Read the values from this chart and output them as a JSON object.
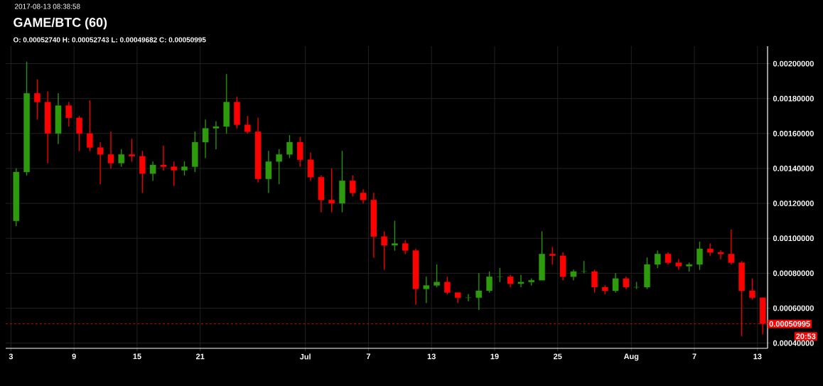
{
  "chart_data": {
    "type": "candlestick",
    "title": "GAME/BTC (60)",
    "subtitle": "O: 0.00052740 H: 0.00052743 L: 0.00049682 C: 0.00050995",
    "annotations": [
      "2017-08-13 08:38:58",
      "20:53"
    ],
    "x": [
      "2017-06-03T12:00",
      "2017-06-04T12:00",
      "2017-06-05T12:00",
      "2017-06-06T12:00",
      "2017-06-07T12:00",
      "2017-06-08T12:00",
      "2017-06-09T12:00",
      "2017-06-10T12:00",
      "2017-06-11T12:00",
      "2017-06-12T12:00",
      "2017-06-13T12:00",
      "2017-06-14T12:00",
      "2017-06-15T12:00",
      "2017-06-16T12:00",
      "2017-06-17T12:00",
      "2017-06-18T12:00",
      "2017-06-19T12:00",
      "2017-06-20T12:00",
      "2017-06-21T12:00",
      "2017-06-22T12:00",
      "2017-06-23T12:00",
      "2017-06-24T12:00",
      "2017-06-25T12:00",
      "2017-06-26T12:00",
      "2017-06-27T12:00",
      "2017-06-28T12:00",
      "2017-06-29T12:00",
      "2017-06-30T12:00",
      "2017-07-01T12:00",
      "2017-07-02T12:00",
      "2017-07-03T12:00",
      "2017-07-04T12:00",
      "2017-07-05T12:00",
      "2017-07-06T12:00",
      "2017-07-07T12:00",
      "2017-07-08T12:00",
      "2017-07-09T12:00",
      "2017-07-10T12:00",
      "2017-07-11T12:00",
      "2017-07-12T12:00",
      "2017-07-13T12:00",
      "2017-07-14T12:00",
      "2017-07-15T12:00",
      "2017-07-16T12:00",
      "2017-07-17T12:00",
      "2017-07-18T12:00",
      "2017-07-19T12:00",
      "2017-07-20T12:00",
      "2017-07-21T12:00",
      "2017-07-22T12:00",
      "2017-07-23T12:00",
      "2017-07-24T12:00",
      "2017-07-25T12:00",
      "2017-07-26T12:00",
      "2017-07-27T12:00",
      "2017-07-28T12:00",
      "2017-07-29T12:00",
      "2017-07-30T12:00",
      "2017-07-31T12:00",
      "2017-08-01T12:00",
      "2017-08-02T12:00",
      "2017-08-03T12:00",
      "2017-08-04T12:00",
      "2017-08-05T12:00",
      "2017-08-06T12:00",
      "2017-08-07T12:00",
      "2017-08-08T12:00",
      "2017-08-09T12:00",
      "2017-08-10T12:00",
      "2017-08-11T12:00",
      "2017-08-12T12:00",
      "2017-08-13T12:00"
    ],
    "ohlc": [
      [
        0.0011,
        0.0014,
        0.00107,
        0.00138
      ],
      [
        0.00138,
        0.00201,
        0.00136,
        0.00183
      ],
      [
        0.00183,
        0.00191,
        0.00168,
        0.00178
      ],
      [
        0.00178,
        0.00184,
        0.00143,
        0.0016
      ],
      [
        0.0016,
        0.00183,
        0.00154,
        0.00176
      ],
      [
        0.00176,
        0.00178,
        0.00164,
        0.00169
      ],
      [
        0.00169,
        0.0017,
        0.0015,
        0.0016
      ],
      [
        0.0016,
        0.00179,
        0.0015,
        0.00152
      ],
      [
        0.00152,
        0.00155,
        0.00131,
        0.00148
      ],
      [
        0.00148,
        0.00161,
        0.0014,
        0.00143
      ],
      [
        0.00143,
        0.00151,
        0.00141,
        0.00148
      ],
      [
        0.00148,
        0.00157,
        0.00144,
        0.00147
      ],
      [
        0.00147,
        0.0015,
        0.00126,
        0.00137
      ],
      [
        0.00137,
        0.00144,
        0.00133,
        0.00142
      ],
      [
        0.00142,
        0.00153,
        0.00139,
        0.00141
      ],
      [
        0.00141,
        0.00144,
        0.0013,
        0.00139
      ],
      [
        0.00139,
        0.00144,
        0.00136,
        0.00141
      ],
      [
        0.00141,
        0.00161,
        0.00138,
        0.00155
      ],
      [
        0.00155,
        0.00168,
        0.00146,
        0.00163
      ],
      [
        0.00163,
        0.00167,
        0.00151,
        0.00164
      ],
      [
        0.00164,
        0.00194,
        0.0016,
        0.00178
      ],
      [
        0.00178,
        0.00181,
        0.00163,
        0.00165
      ],
      [
        0.00165,
        0.0017,
        0.0016,
        0.00161
      ],
      [
        0.00161,
        0.00169,
        0.00132,
        0.00134
      ],
      [
        0.00134,
        0.0015,
        0.00126,
        0.00144
      ],
      [
        0.00144,
        0.00151,
        0.00131,
        0.00148
      ],
      [
        0.00148,
        0.00159,
        0.00146,
        0.00155
      ],
      [
        0.00155,
        0.00158,
        0.00141,
        0.00145
      ],
      [
        0.00145,
        0.00149,
        0.00133,
        0.00135
      ],
      [
        0.00135,
        0.00136,
        0.00115,
        0.00122
      ],
      [
        0.00122,
        0.0014,
        0.00115,
        0.0012
      ],
      [
        0.0012,
        0.0015,
        0.00115,
        0.00133
      ],
      [
        0.00133,
        0.00136,
        0.00124,
        0.00126
      ],
      [
        0.00126,
        0.00128,
        0.0012,
        0.00122
      ],
      [
        0.00122,
        0.00126,
        0.00089,
        0.00101
      ],
      [
        0.00101,
        0.00104,
        0.00082,
        0.00096
      ],
      [
        0.00096,
        0.0011,
        0.00093,
        0.00097
      ],
      [
        0.00097,
        0.00099,
        0.00091,
        0.00093
      ],
      [
        0.00093,
        0.00094,
        0.00062,
        0.00071
      ],
      [
        0.00071,
        0.00078,
        0.00063,
        0.00073
      ],
      [
        0.00073,
        0.00085,
        0.00072,
        0.00075
      ],
      [
        0.00075,
        0.00078,
        0.00068,
        0.00069
      ],
      [
        0.00069,
        0.00069,
        0.00063,
        0.00066
      ],
      [
        0.00066,
        0.00068,
        0.00064,
        0.00066
      ],
      [
        0.00066,
        0.0008,
        0.00059,
        0.0007
      ],
      [
        0.0007,
        0.00081,
        0.00069,
        0.00078
      ],
      [
        0.00078,
        0.00083,
        0.00075,
        0.00078
      ],
      [
        0.00078,
        0.00079,
        0.00072,
        0.00074
      ],
      [
        0.00074,
        0.00079,
        0.00072,
        0.00075
      ],
      [
        0.00075,
        0.00077,
        0.00073,
        0.00076
      ],
      [
        0.00076,
        0.00104,
        0.00076,
        0.00091
      ],
      [
        0.00091,
        0.00095,
        0.00085,
        0.0009
      ],
      [
        0.0009,
        0.00092,
        0.00076,
        0.00078
      ],
      [
        0.00078,
        0.00082,
        0.00076,
        0.00081
      ],
      [
        0.00081,
        0.00087,
        0.0008,
        0.00081
      ],
      [
        0.00081,
        0.00082,
        0.00069,
        0.00072
      ],
      [
        0.00072,
        0.00073,
        0.00068,
        0.0007
      ],
      [
        0.0007,
        0.0008,
        0.00069,
        0.00077
      ],
      [
        0.00077,
        0.00078,
        0.00071,
        0.00072
      ],
      [
        0.00072,
        0.00075,
        0.00071,
        0.00072
      ],
      [
        0.00072,
        0.00089,
        0.00071,
        0.00085
      ],
      [
        0.00085,
        0.00093,
        0.00083,
        0.00091
      ],
      [
        0.00091,
        0.00092,
        0.00085,
        0.00086
      ],
      [
        0.00086,
        0.00088,
        0.00082,
        0.00084
      ],
      [
        0.00084,
        0.00086,
        0.00081,
        0.00085
      ],
      [
        0.00085,
        0.00098,
        0.00082,
        0.00094
      ],
      [
        0.00094,
        0.00097,
        0.0009,
        0.00092
      ],
      [
        0.00092,
        0.00093,
        0.00088,
        0.00091
      ],
      [
        0.00091,
        0.00105,
        0.00085,
        0.00086
      ],
      [
        0.00086,
        0.00087,
        0.00044,
        0.0007
      ],
      [
        0.0007,
        0.00077,
        0.00065,
        0.00066
      ],
      [
        0.00066,
        0.00066,
        0.00045,
        0.00051
      ]
    ],
    "colors": [
      "#2e9a0e",
      "#2e9a0e",
      "#ff0000",
      "#ff0000",
      "#2e9a0e",
      "#ff0000",
      "#ff0000",
      "#ff0000",
      "#ff0000",
      "#ff0000",
      "#2e9a0e",
      "#ff0000",
      "#ff0000",
      "#2e9a0e",
      "#ff0000",
      "#ff0000",
      "#2e9a0e",
      "#2e9a0e",
      "#2e9a0e",
      "#2e9a0e",
      "#2e9a0e",
      "#ff0000",
      "#ff0000",
      "#ff0000",
      "#2e9a0e",
      "#2e9a0e",
      "#2e9a0e",
      "#ff0000",
      "#ff0000",
      "#ff0000",
      "#ff0000",
      "#2e9a0e",
      "#ff0000",
      "#ff0000",
      "#ff0000",
      "#ff0000",
      "#2e9a0e",
      "#ff0000",
      "#ff0000",
      "#2e9a0e",
      "#2e9a0e",
      "#ff0000",
      "#ff0000",
      "#2e9a0e",
      "#2e9a0e",
      "#2e9a0e",
      "#2e9a0e",
      "#ff0000",
      "#2e9a0e",
      "#2e9a0e",
      "#2e9a0e",
      "#ff0000",
      "#ff0000",
      "#2e9a0e",
      "#2e9a0e",
      "#ff0000",
      "#ff0000",
      "#2e9a0e",
      "#ff0000",
      "#2e9a0e",
      "#2e9a0e",
      "#2e9a0e",
      "#ff0000",
      "#ff0000",
      "#2e9a0e",
      "#2e9a0e",
      "#ff0000",
      "#ff0000",
      "#ff0000",
      "#ff0000",
      "#ff0000",
      "#ff0000"
    ],
    "xlim": [
      "2017-06-02T12:00",
      "2017-08-13T23:00"
    ],
    "xticks": [
      {
        "value": "2017-06-03",
        "label": "3"
      },
      {
        "value": "2017-06-09",
        "label": "9"
      },
      {
        "value": "2017-06-15",
        "label": "15"
      },
      {
        "value": "2017-06-21",
        "label": "21"
      },
      {
        "value": "2017-07-01",
        "label": "Jul"
      },
      {
        "value": "2017-07-07",
        "label": "7"
      },
      {
        "value": "2017-07-13",
        "label": "13"
      },
      {
        "value": "2017-07-19",
        "label": "19"
      },
      {
        "value": "2017-07-25",
        "label": "25"
      },
      {
        "value": "2017-08-01",
        "label": "Aug"
      },
      {
        "value": "2017-08-07",
        "label": "7"
      },
      {
        "value": "2017-08-13",
        "label": "13"
      }
    ],
    "ylim": [
      0.00037,
      0.0021
    ],
    "yticks": [
      {
        "value": 0.0004,
        "label": "0.00040000"
      },
      {
        "value": 0.0006,
        "label": "0.00060000"
      },
      {
        "value": 0.0008,
        "label": "0.00080000"
      },
      {
        "value": 0.001,
        "label": "0.00100000"
      },
      {
        "value": 0.0012,
        "label": "0.00120000"
      },
      {
        "value": 0.0014,
        "label": "0.00140000"
      },
      {
        "value": 0.0016,
        "label": "0.00160000"
      },
      {
        "value": 0.0018,
        "label": "0.00180000"
      },
      {
        "value": 0.002,
        "label": "0.00200000"
      }
    ],
    "ref_lines": [
      {
        "axis": "y",
        "value": 0.00050995,
        "label": "0.00050995",
        "color": "#ff0000",
        "line_style": "dashed"
      }
    ],
    "grid": true
  }
}
